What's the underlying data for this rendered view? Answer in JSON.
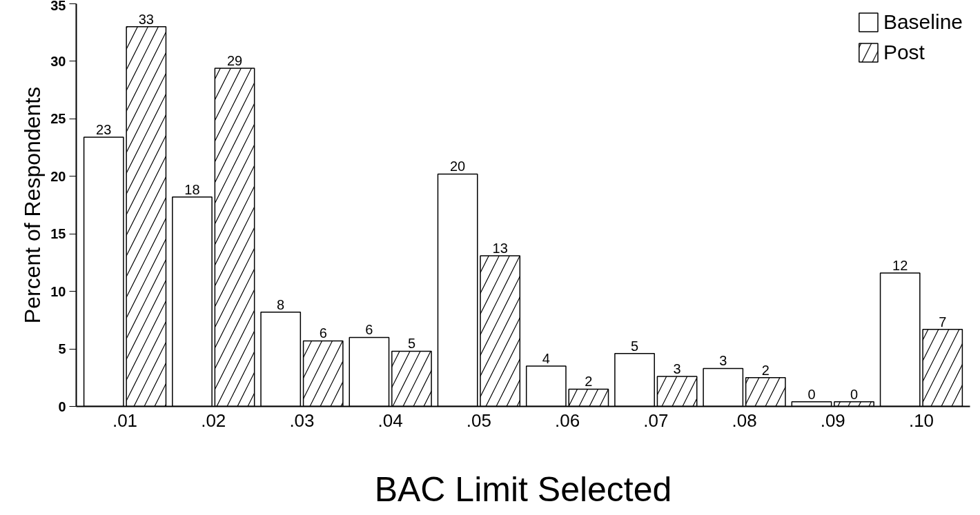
{
  "chart_data": {
    "type": "bar",
    "xlabel": "BAC Limit Selected",
    "ylabel": "Percent of Respondents",
    "categories": [
      ".01",
      ".02",
      ".03",
      ".04",
      ".05",
      ".06",
      ".07",
      ".08",
      ".09",
      ".10"
    ],
    "series": [
      {
        "name": "Baseline",
        "color": "#ffffff",
        "values": [
          23.4,
          18.2,
          8.2,
          6.0,
          20.2,
          3.5,
          4.6,
          3.3,
          0.4,
          11.6
        ],
        "value_labels": [
          "23",
          "18",
          "8",
          "6",
          "20",
          "4",
          "5",
          "3",
          "0",
          "12"
        ]
      },
      {
        "name": "Post",
        "color": "#ffffff",
        "values": [
          33.0,
          29.4,
          5.7,
          4.8,
          13.1,
          1.5,
          2.6,
          2.5,
          0.4,
          6.7
        ],
        "value_labels": [
          "33",
          "29",
          "6",
          "5",
          "13",
          "2",
          "3",
          "2",
          "0",
          "7"
        ]
      }
    ],
    "ylim": [
      0,
      35
    ],
    "yticks": [
      0,
      5,
      10,
      15,
      20,
      25,
      30,
      35
    ],
    "grid": false,
    "legend": "top right"
  }
}
